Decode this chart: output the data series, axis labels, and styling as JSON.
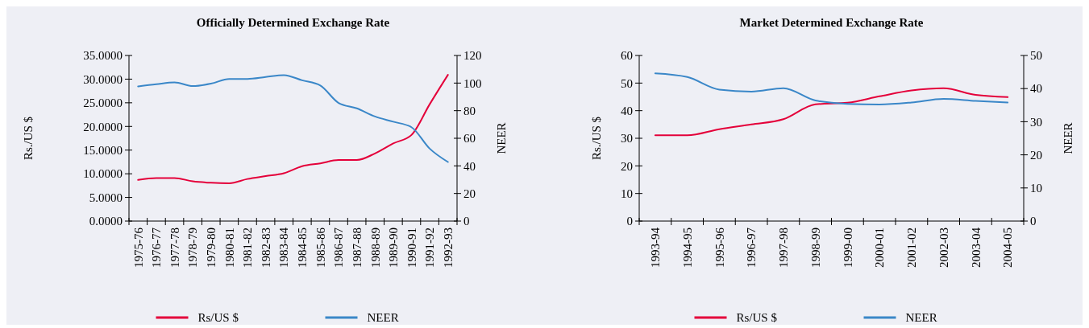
{
  "chart_data": [
    {
      "type": "line",
      "title": "Officially Determined Exchange Rate",
      "ylabel": "Rs./US $",
      "y2label": "NEER",
      "categories": [
        "1975-76",
        "1976-77",
        "1977-78",
        "1978-79",
        "1979-80",
        "1980-81",
        "1981-82",
        "1982-83",
        "1983-84",
        "1984-85",
        "1985-86",
        "1986-87",
        "1987-88",
        "1988-89",
        "1989-90",
        "1990-91",
        "1991-92",
        "1992-93"
      ],
      "series": [
        {
          "name": "Rs/US $",
          "color": "#e4003a",
          "values": [
            8.7,
            9.1,
            9.1,
            8.4,
            8.1,
            8.0,
            8.9,
            9.5,
            10.1,
            11.6,
            12.2,
            12.9,
            12.9,
            14.3,
            16.4,
            18.2,
            24.7,
            30.9
          ]
        },
        {
          "name": "NEER",
          "color": "#3a87c8",
          "axis": "y2",
          "values": [
            97.6,
            99.2,
            100.5,
            97.8,
            99.6,
            103,
            103,
            104.4,
            105.8,
            102,
            98.2,
            85.6,
            81.7,
            75.8,
            72,
            68,
            52.5,
            42.8
          ]
        }
      ],
      "ylim": [
        0,
        35
      ],
      "yticks": [
        {
          "value": 0,
          "label": "0.0000"
        },
        {
          "value": 5,
          "label": "5.0000"
        },
        {
          "value": 10,
          "label": "10.0000"
        },
        {
          "value": 15,
          "label": "15.0000"
        },
        {
          "value": 20,
          "label": "20.0000"
        },
        {
          "value": 25,
          "label": "25.0000"
        },
        {
          "value": 30,
          "label": "30.0000"
        },
        {
          "value": 35,
          "label": "35.0000"
        }
      ],
      "y2lim": [
        0,
        120
      ],
      "y2ticks": [
        0,
        20,
        40,
        60,
        80,
        100,
        120
      ],
      "legend": "bottom",
      "grid": false
    },
    {
      "type": "line",
      "title": "Market Determined Exchange Rate",
      "ylabel": "Rs./US $",
      "y2label": "NEER",
      "categories": [
        "1993-94",
        "1994-95",
        "1995-96",
        "1996-97",
        "1997-98",
        "1998-99",
        "1999-00",
        "2000-01",
        "2001-02",
        "2002-03",
        "2003-04",
        "2004-05"
      ],
      "series": [
        {
          "name": "Rs/US $",
          "color": "#e4003a",
          "values": [
            31.1,
            31.1,
            33.3,
            35,
            36.9,
            42.3,
            42.9,
            45.2,
            47.3,
            48.1,
            45.7,
            44.9
          ]
        },
        {
          "name": "NEER",
          "color": "#3a87c8",
          "axis": "y2",
          "values": [
            44.6,
            43.5,
            39.7,
            39.1,
            40.1,
            36.4,
            35.4,
            35.2,
            35.8,
            36.9,
            36.3,
            35.8
          ]
        }
      ],
      "ylim": [
        0,
        60
      ],
      "yticks": [
        0,
        10,
        20,
        30,
        40,
        50,
        60
      ],
      "y2lim": [
        0,
        50
      ],
      "y2ticks": [
        0,
        10,
        20,
        30,
        40,
        50
      ],
      "legend": "bottom",
      "grid": false
    }
  ]
}
